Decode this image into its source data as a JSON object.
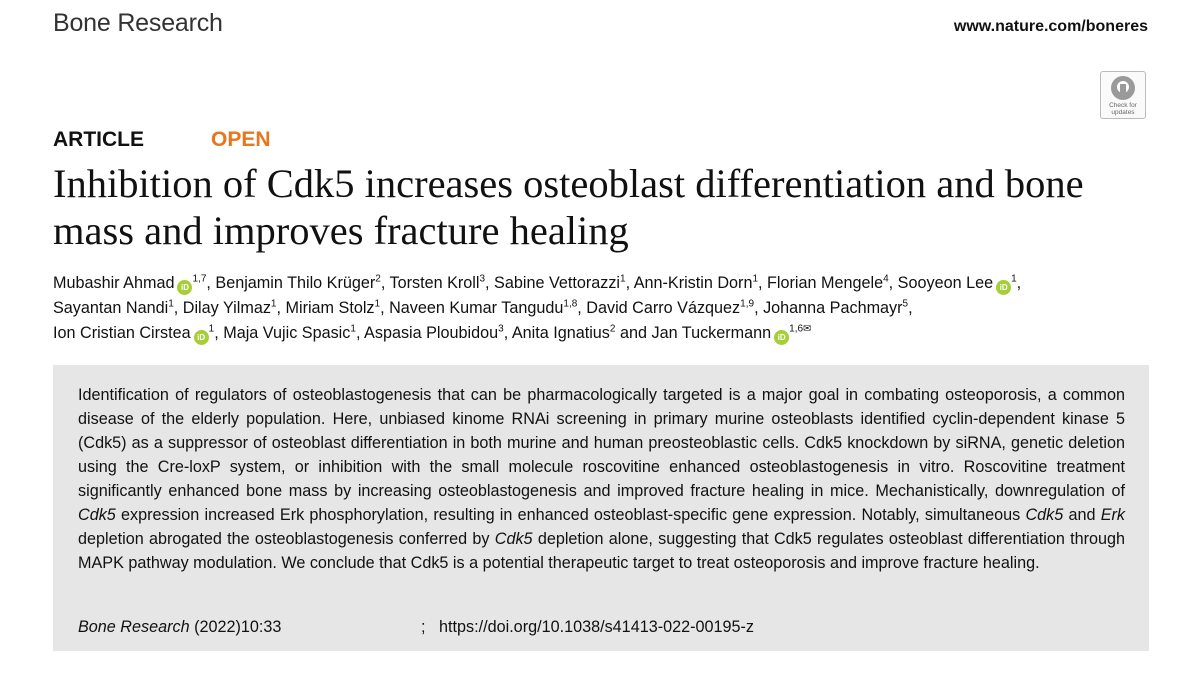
{
  "header": {
    "journal_name": "Bone Research",
    "url": "www.nature.com/boneres",
    "check_updates_label": "Check for updates"
  },
  "article": {
    "type": "ARTICLE",
    "access": "OPEN",
    "title": "Inhibition of Cdk5 increases osteoblast differentiation and bone mass and improves fracture healing"
  },
  "authors": [
    {
      "name": "Mubashir Ahmad",
      "aff": "1,7",
      "orcid": true
    },
    {
      "name": "Benjamin Thilo Krüger",
      "aff": "2"
    },
    {
      "name": "Torsten Kroll",
      "aff": "3"
    },
    {
      "name": "Sabine Vettorazzi",
      "aff": "1"
    },
    {
      "name": "Ann-Kristin Dorn",
      "aff": "1"
    },
    {
      "name": "Florian Mengele",
      "aff": "4"
    },
    {
      "name": "Sooyeon Lee",
      "aff": "1",
      "orcid": true
    },
    {
      "name": "Sayantan Nandi",
      "aff": "1"
    },
    {
      "name": "Dilay Yilmaz",
      "aff": "1"
    },
    {
      "name": "Miriam Stolz",
      "aff": "1"
    },
    {
      "name": "Naveen Kumar Tangudu",
      "aff": "1,8"
    },
    {
      "name": "David Carro Vázquez",
      "aff": "1,9"
    },
    {
      "name": "Johanna Pachmayr",
      "aff": "5"
    },
    {
      "name": "Ion Cristian Cirstea",
      "aff": "1",
      "orcid": true
    },
    {
      "name": "Maja Vujic Spasic",
      "aff": "1"
    },
    {
      "name": "Aspasia Ploubidou",
      "aff": "3"
    },
    {
      "name": "Anita Ignatius",
      "aff": "2"
    },
    {
      "name": "Jan Tuckermann",
      "aff": "1,6",
      "orcid": true,
      "corresponding": true
    }
  ],
  "author_conjunction": "and",
  "abstract": {
    "p1": "Identification of regulators of osteoblastogenesis that can be pharmacologically targeted is a major goal in combating osteoporosis, a common disease of the elderly population. Here, unbiased kinome RNAi screening in primary murine osteoblasts identified cyclin-dependent kinase 5 (Cdk5) as a suppressor of osteoblast differentiation in both murine and human preosteoblastic cells. Cdk5 knockdown by siRNA, genetic deletion using the Cre-loxP system, or inhibition with the small molecule roscovitine enhanced osteoblastogenesis in vitro. Roscovitine treatment significantly enhanced bone mass by increasing osteoblastogenesis and improved fracture healing in mice. Mechanistically, downregulation of ",
    "gene1": "Cdk5",
    "p2": " expression increased Erk phosphorylation, resulting in enhanced osteoblast-specific gene expression. Notably, simultaneous ",
    "gene2": "Cdk5",
    "p3": " and ",
    "gene3": "Erk",
    "p4": " depletion abrogated the osteoblastogenesis conferred by ",
    "gene4": "Cdk5",
    "p5": " depletion alone, suggesting that Cdk5 regulates osteoblast differentiation through MAPK pathway modulation. We conclude that Cdk5 is a potential therapeutic target to treat osteoporosis and improve fracture healing."
  },
  "citation": {
    "journal": "Bone Research",
    "volume": " (2022)10:33",
    "separator": ";",
    "doi": "https://doi.org/10.1038/s41413-022-00195-z"
  }
}
